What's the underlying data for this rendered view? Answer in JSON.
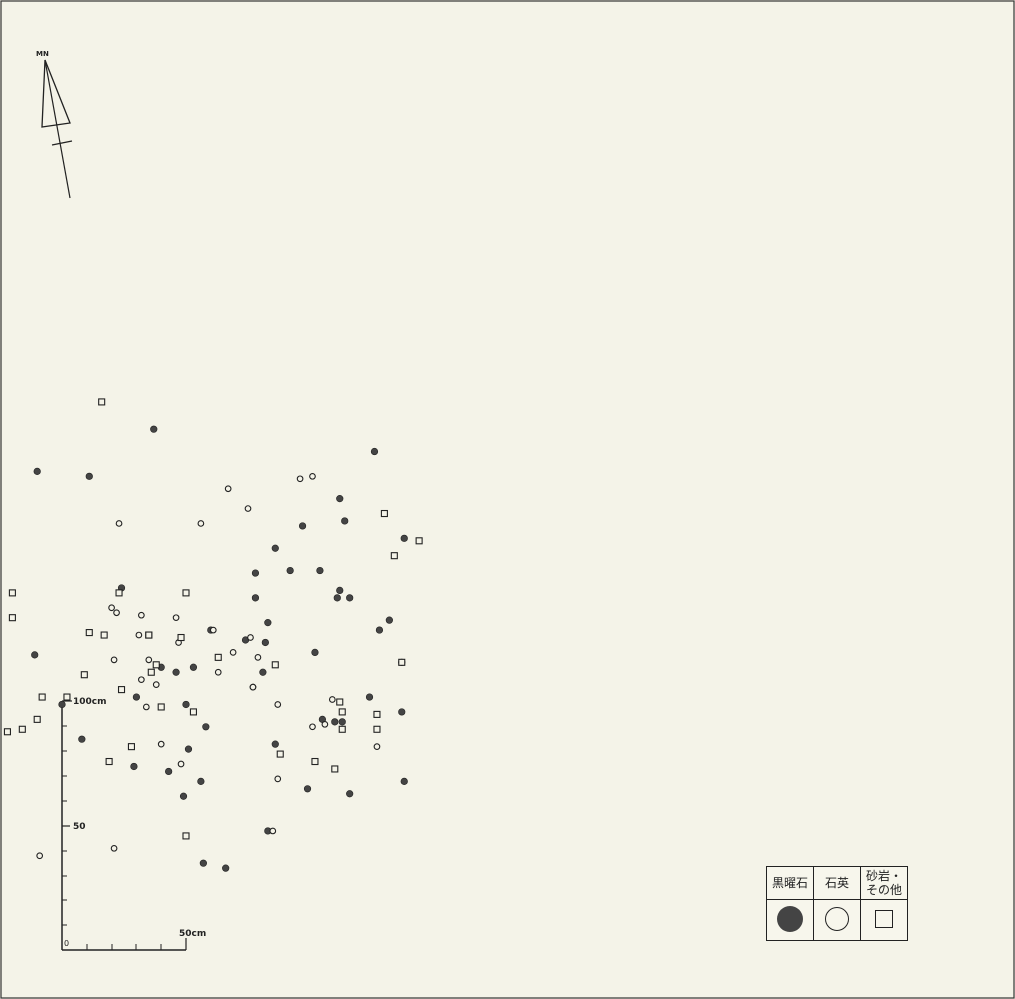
{
  "north_arrow": {
    "label": "MN"
  },
  "scale_bar": {
    "vertical_labels": [
      "100cm",
      "50",
      "0"
    ],
    "horizontal_label": "50cm"
  },
  "legend": {
    "headers": [
      "黒曜石",
      "石英",
      "砂岩・\nその他"
    ],
    "symbols": [
      "filled-circle",
      "open-circle",
      "open-square"
    ]
  },
  "colors": {
    "background": "#f4f3e8",
    "ink": "#222222",
    "obsidian_fill": "#444444"
  },
  "chart_data": {
    "type": "scatter",
    "title": "",
    "xlabel": "",
    "ylabel": "",
    "units": "cm",
    "series": [
      {
        "name": "黒曜石",
        "marker": "filled-circle",
        "points": [
          [
            -10,
            193
          ],
          [
            126,
            201
          ],
          [
            97,
            171
          ],
          [
            112,
            182
          ],
          [
            114,
            173
          ],
          [
            138,
            166
          ],
          [
            116,
            142
          ],
          [
            111,
            142
          ],
          [
            86,
            162
          ],
          [
            128,
            129
          ],
          [
            78,
            142
          ],
          [
            104,
            153
          ],
          [
            78,
            152
          ],
          [
            60,
            129
          ],
          [
            74,
            125
          ],
          [
            46,
            112
          ],
          [
            40,
            114
          ],
          [
            30,
            102
          ],
          [
            -11,
            119
          ],
          [
            8,
            85
          ],
          [
            0,
            99
          ],
          [
            105,
            93
          ],
          [
            43,
            72
          ],
          [
            49,
            62
          ],
          [
            53,
            114
          ],
          [
            56,
            68
          ],
          [
            113,
            92
          ],
          [
            110,
            92
          ],
          [
            124,
            102
          ],
          [
            137,
            116
          ],
          [
            137,
            96
          ],
          [
            99,
            65
          ],
          [
            50,
            99
          ],
          [
            66,
            33
          ],
          [
            51,
            81
          ],
          [
            58,
            90
          ],
          [
            86,
            83
          ],
          [
            29,
            74
          ],
          [
            83,
            48
          ],
          [
            112,
            145
          ],
          [
            116,
            63
          ],
          [
            57,
            35
          ],
          [
            83,
            132
          ],
          [
            81,
            112
          ],
          [
            102,
            120
          ],
          [
            82,
            124
          ],
          [
            92,
            153
          ],
          [
            138,
            68
          ],
          [
            132,
            133
          ],
          [
            24,
            146
          ],
          [
            11,
            191
          ],
          [
            37,
            210
          ]
        ]
      },
      {
        "name": "石英",
        "marker": "open-circle",
        "points": [
          [
            67,
            186
          ],
          [
            96,
            190
          ],
          [
            101,
            191
          ],
          [
            56,
            172
          ],
          [
            75,
            178
          ],
          [
            69,
            120
          ],
          [
            61,
            129
          ],
          [
            79,
            118
          ],
          [
            35,
            117
          ],
          [
            -9,
            38
          ],
          [
            63,
            112
          ],
          [
            31,
            127
          ],
          [
            32,
            109
          ],
          [
            46,
            134
          ],
          [
            47,
            124
          ],
          [
            77,
            106
          ],
          [
            87,
            99
          ],
          [
            109,
            101
          ],
          [
            106,
            91
          ],
          [
            87,
            69
          ],
          [
            127,
            82
          ],
          [
            34,
            98
          ],
          [
            32,
            135
          ],
          [
            22,
            136
          ],
          [
            38,
            107
          ],
          [
            20,
            138
          ],
          [
            48,
            75
          ],
          [
            85,
            48
          ],
          [
            21,
            41
          ],
          [
            23,
            172
          ],
          [
            77,
            106
          ],
          [
            76,
            126
          ],
          [
            21,
            117
          ],
          [
            101,
            90
          ],
          [
            40,
            83
          ]
        ]
      },
      {
        "name": "砂岩・その他",
        "marker": "open-square",
        "points": [
          [
            16,
            221
          ],
          [
            -20,
            144
          ],
          [
            -20,
            134
          ],
          [
            9,
            111
          ],
          [
            2,
            102
          ],
          [
            11,
            128
          ],
          [
            35,
            127
          ],
          [
            28,
            82
          ],
          [
            19,
            76
          ],
          [
            -22,
            88
          ],
          [
            -10,
            93
          ],
          [
            -16,
            89
          ],
          [
            -8,
            102
          ],
          [
            23,
            144
          ],
          [
            50,
            144
          ],
          [
            35,
            127
          ],
          [
            38,
            115
          ],
          [
            63,
            118
          ],
          [
            130,
            176
          ],
          [
            137,
            116
          ],
          [
            134,
            159
          ],
          [
            144,
            165
          ],
          [
            127,
            89
          ],
          [
            127,
            95
          ],
          [
            102,
            76
          ],
          [
            50,
            46
          ],
          [
            17,
            127
          ],
          [
            36,
            112
          ],
          [
            40,
            98
          ],
          [
            24,
            105
          ],
          [
            48,
            126
          ],
          [
            88,
            79
          ],
          [
            86,
            115
          ],
          [
            113,
            96
          ],
          [
            113,
            89
          ],
          [
            112,
            100
          ],
          [
            110,
            73
          ],
          [
            53,
            96
          ]
        ]
      }
    ]
  }
}
